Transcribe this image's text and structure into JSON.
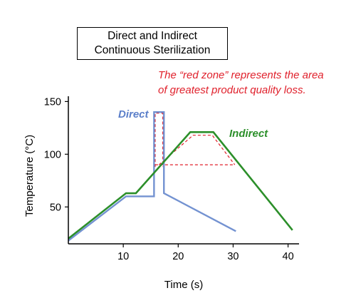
{
  "chart_data": {
    "type": "line",
    "title_lines": [
      "Direct and Indirect",
      "Continuous Sterilization"
    ],
    "annotation_lines": [
      "The “red zone” represents the area",
      "of greatest product quality loss."
    ],
    "xlabel": "Time (s)",
    "ylabel": "Temperature (°C)",
    "xlim": [
      0,
      42
    ],
    "ylim": [
      15,
      155
    ],
    "xticks": [
      "10",
      "20",
      "30",
      "40"
    ],
    "yticks": [
      "50",
      "100",
      "150"
    ],
    "grid": false,
    "series": [
      {
        "name": "Direct",
        "color": "#5b7fc9",
        "x": [
          0,
          10.5,
          15.6,
          15.6,
          17.4,
          17.4,
          30.5
        ],
        "y": [
          18,
          60,
          60,
          140,
          140,
          63,
          27
        ]
      },
      {
        "name": "Indirect",
        "color": "#2c8f2a",
        "x": [
          0,
          10.5,
          12.3,
          22.2,
          26.4,
          40.8
        ],
        "y": [
          20,
          63,
          63,
          121,
          121,
          28
        ]
      }
    ],
    "red_zone": {
      "color": "#e0212c",
      "direct_outline": {
        "x": [
          15.8,
          15.8,
          17.2,
          17.2
        ],
        "y": [
          88,
          139,
          139,
          88
        ]
      },
      "indirect_outline": {
        "x": [
          16.5,
          22.7,
          26.2,
          30.3
        ],
        "y": [
          90,
          118,
          118,
          90
        ]
      },
      "baseline_y": 90,
      "baseline_x": [
        15.8,
        30.3
      ]
    }
  }
}
